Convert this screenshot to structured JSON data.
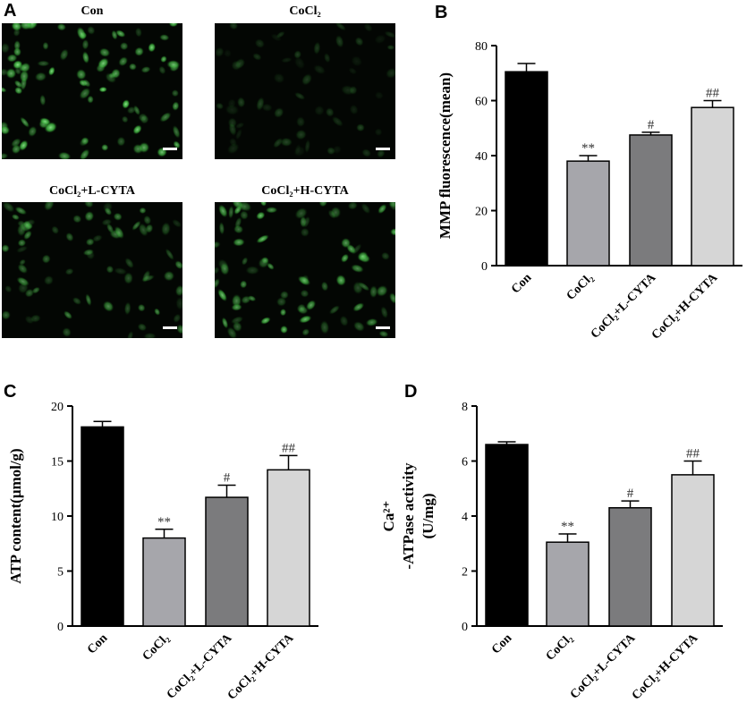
{
  "panel_labels": [
    "A",
    "B",
    "C",
    "D"
  ],
  "micrographs": [
    {
      "title": "Con",
      "intensity": 1.0
    },
    {
      "title": "CoCl₂",
      "intensity": 0.28
    },
    {
      "title": "CoCl₂+L-CYTA",
      "intensity": 0.6
    },
    {
      "title": "CoCl₂+H-CYTA",
      "intensity": 0.85
    }
  ],
  "colors": {
    "bar_fills": [
      "#000000",
      "#a6a6ab",
      "#7b7b7d",
      "#d6d6d6"
    ],
    "cell_green": "#4ec84e",
    "background_dark": "#030603"
  },
  "chart_data": [
    {
      "panel": "B",
      "type": "bar",
      "categories": [
        "Con",
        "CoCl₂",
        "CoCl₂+L-CYTA",
        "CoCl₂+H-CYTA"
      ],
      "values": [
        70.5,
        38,
        47.5,
        57.5
      ],
      "errors": [
        3,
        2,
        1,
        2.5
      ],
      "significance": [
        "",
        "**",
        "#",
        "##"
      ],
      "ylabel": "MMP fluorescence(mean)",
      "ylim": [
        0,
        80
      ],
      "yticks": [
        0,
        20,
        40,
        60,
        80
      ]
    },
    {
      "panel": "C",
      "type": "bar",
      "categories": [
        "Con",
        "CoCl₂",
        "CoCl₂+L-CYTA",
        "CoCl₂+H-CYTA"
      ],
      "values": [
        18.1,
        8,
        11.7,
        14.2
      ],
      "errors": [
        0.5,
        0.8,
        1.1,
        1.3
      ],
      "significance": [
        "",
        "**",
        "#",
        "##"
      ],
      "ylabel": "ATP content(μmol/g)",
      "ylim": [
        0,
        20
      ],
      "yticks": [
        0,
        5,
        10,
        15,
        20
      ]
    },
    {
      "panel": "D",
      "type": "bar",
      "categories": [
        "Con",
        "CoCl₂",
        "CoCl₂+L-CYTA",
        "CoCl₂+H-CYTA"
      ],
      "values": [
        6.6,
        3.05,
        4.3,
        5.5
      ],
      "errors": [
        0.1,
        0.3,
        0.25,
        0.5
      ],
      "significance": [
        "",
        "**",
        "#",
        "##"
      ],
      "ylabel_lines": [
        "Ca²⁺",
        "-ATPase activity",
        "(U/mg)"
      ],
      "ylim": [
        0,
        8
      ],
      "yticks": [
        0,
        2,
        4,
        6,
        8
      ]
    }
  ]
}
